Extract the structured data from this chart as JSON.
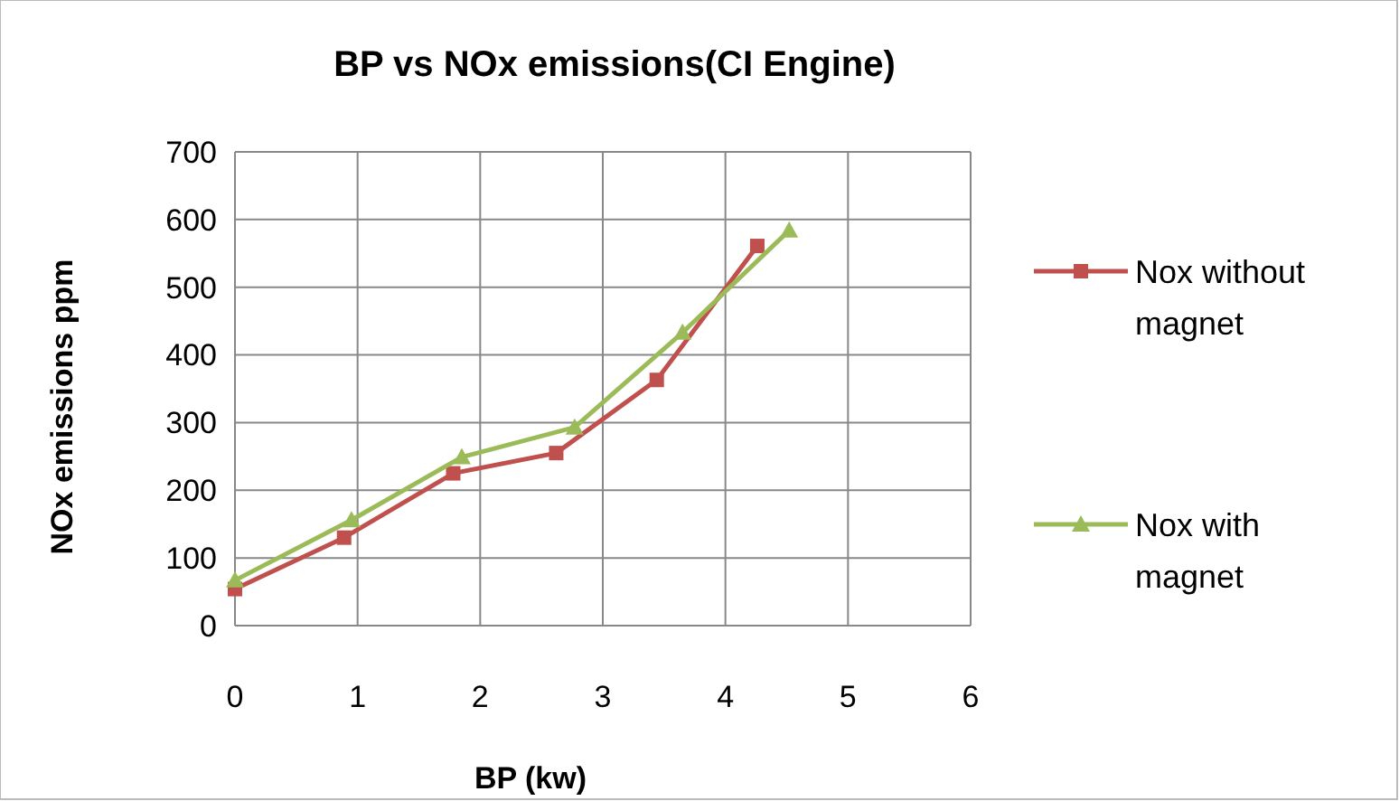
{
  "chart_data": {
    "type": "line",
    "title": "BP vs NOx emissions(CI Engine)",
    "xlabel": "BP (kw)",
    "ylabel": "NOx emissions ppm",
    "xlim": [
      0,
      6
    ],
    "xticks": [
      0,
      1,
      2,
      3,
      4,
      5,
      6
    ],
    "ylim": [
      0,
      700
    ],
    "yticks": [
      0,
      100,
      200,
      300,
      400,
      500,
      600,
      700
    ],
    "grid": true,
    "legend": "right",
    "series": [
      {
        "name": "Nox without magnet",
        "color": "#c0504d",
        "marker": "square",
        "x": [
          0,
          0.89,
          1.78,
          2.62,
          3.44,
          4.26
        ],
        "values": [
          54,
          130,
          225,
          255,
          363,
          561
        ]
      },
      {
        "name": "Nox with magnet",
        "color": "#9bbb59",
        "marker": "triangle",
        "x": [
          0,
          0.95,
          1.85,
          2.77,
          3.65,
          4.52
        ],
        "values": [
          67,
          156,
          249,
          293,
          433,
          584
        ]
      }
    ]
  }
}
